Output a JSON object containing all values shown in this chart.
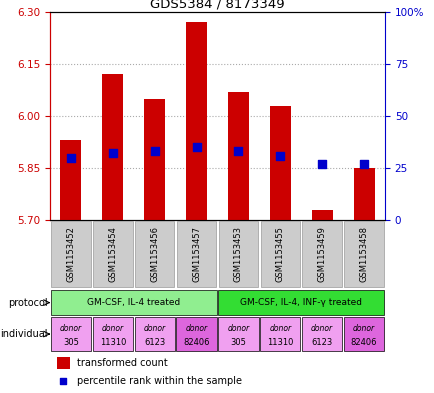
{
  "title": "GDS5384 / 8173349",
  "samples": [
    "GSM1153452",
    "GSM1153454",
    "GSM1153456",
    "GSM1153457",
    "GSM1153453",
    "GSM1153455",
    "GSM1153459",
    "GSM1153458"
  ],
  "transformed_count": [
    5.93,
    6.12,
    6.05,
    6.27,
    6.07,
    6.03,
    5.73,
    5.85
  ],
  "percentile_rank": [
    30,
    32,
    33,
    35,
    33,
    31,
    27,
    27
  ],
  "y_min": 5.7,
  "y_max": 6.3,
  "y_ticks": [
    5.7,
    5.85,
    6.0,
    6.15,
    6.3
  ],
  "right_y_ticks": [
    0,
    25,
    50,
    75,
    100
  ],
  "protocol_groups": [
    {
      "label": "GM-CSF, IL-4 treated",
      "start": 0,
      "end": 4,
      "color": "#90ee90"
    },
    {
      "label": "GM-CSF, IL-4, INF-γ treated",
      "start": 4,
      "end": 8,
      "color": "#33dd33"
    }
  ],
  "ind_colors": [
    "#f0a0f0",
    "#f0a0f0",
    "#f0a0f0",
    "#dd66dd",
    "#f0a0f0",
    "#f0a0f0",
    "#f0a0f0",
    "#dd66dd"
  ],
  "ind_labels_top": [
    "donor",
    "donor",
    "donor",
    "donor",
    "donor",
    "donor",
    "donor",
    "donor"
  ],
  "ind_labels_bot": [
    "305",
    "11310",
    "6123",
    "82406",
    "305",
    "11310",
    "6123",
    "82406"
  ],
  "bar_color": "#cc0000",
  "dot_color": "#0000cc",
  "bar_width": 0.5,
  "dot_size": 40,
  "grid_color": "#aaaaaa",
  "axis_color_left": "#cc0000",
  "axis_color_right": "#0000cc",
  "sample_label_bg": "#cccccc",
  "sample_label_border": "#999999"
}
